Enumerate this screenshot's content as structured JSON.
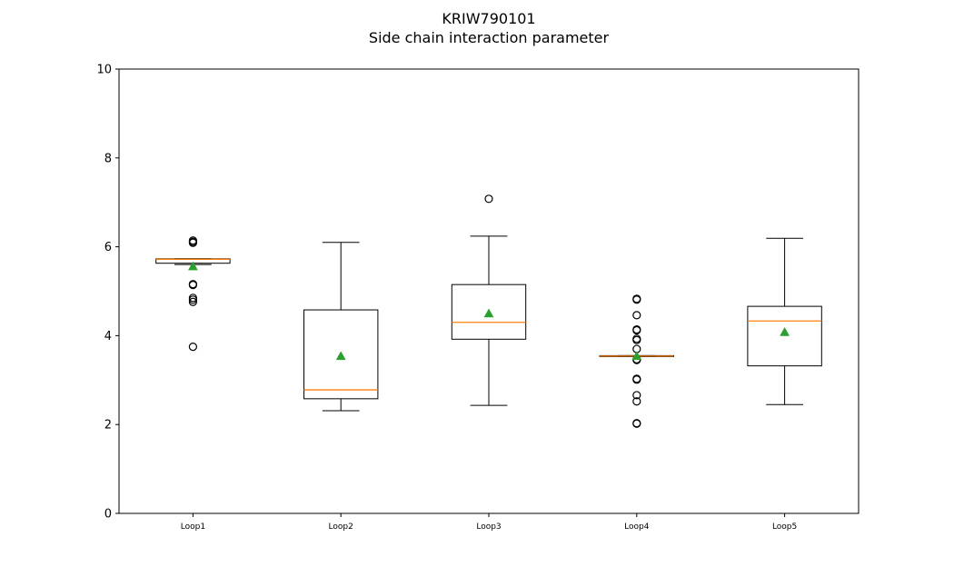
{
  "chart_data": {
    "type": "box",
    "title": "KRIW790101",
    "subtitle": "Side chain interaction parameter",
    "xlabel": "",
    "ylabel": "",
    "ylim": [
      0,
      10
    ],
    "yticks": [
      0,
      2,
      4,
      6,
      8,
      10
    ],
    "grid": false,
    "categories": [
      "Loop1",
      "Loop2",
      "Loop3",
      "Loop4",
      "Loop5"
    ],
    "boxes": [
      {
        "name": "Loop1",
        "whisker_low": 5.6,
        "q1": 5.63,
        "median": 5.72,
        "q3": 5.73,
        "whisker_high": 5.73,
        "mean": 5.56,
        "outliers": [
          6.14,
          6.11,
          6.09,
          5.16,
          5.14,
          4.85,
          4.81,
          4.76,
          3.75
        ]
      },
      {
        "name": "Loop2",
        "whisker_low": 2.31,
        "q1": 2.58,
        "median": 2.78,
        "q3": 4.58,
        "whisker_high": 6.1,
        "mean": 3.54,
        "outliers": []
      },
      {
        "name": "Loop3",
        "whisker_low": 2.43,
        "q1": 3.92,
        "median": 4.3,
        "q3": 5.15,
        "whisker_high": 6.24,
        "mean": 4.5,
        "outliers": [
          7.08
        ]
      },
      {
        "name": "Loop4",
        "whisker_low": 3.53,
        "q1": 3.53,
        "median": 3.54,
        "q3": 3.55,
        "whisker_high": 3.55,
        "mean": 3.54,
        "outliers": [
          4.83,
          4.81,
          4.46,
          4.14,
          4.12,
          3.93,
          3.9,
          3.7,
          3.47,
          3.45,
          3.03,
          3.01,
          2.66,
          2.52,
          2.03,
          2.02
        ]
      },
      {
        "name": "Loop5",
        "whisker_low": 2.45,
        "q1": 3.32,
        "median": 4.33,
        "q3": 4.66,
        "whisker_high": 6.19,
        "mean": 4.08,
        "outliers": []
      }
    ],
    "colors": {
      "box": "#000000",
      "median": "#ff7f0e",
      "mean": "#2ca02c",
      "outlier_edge": "#000000"
    }
  }
}
